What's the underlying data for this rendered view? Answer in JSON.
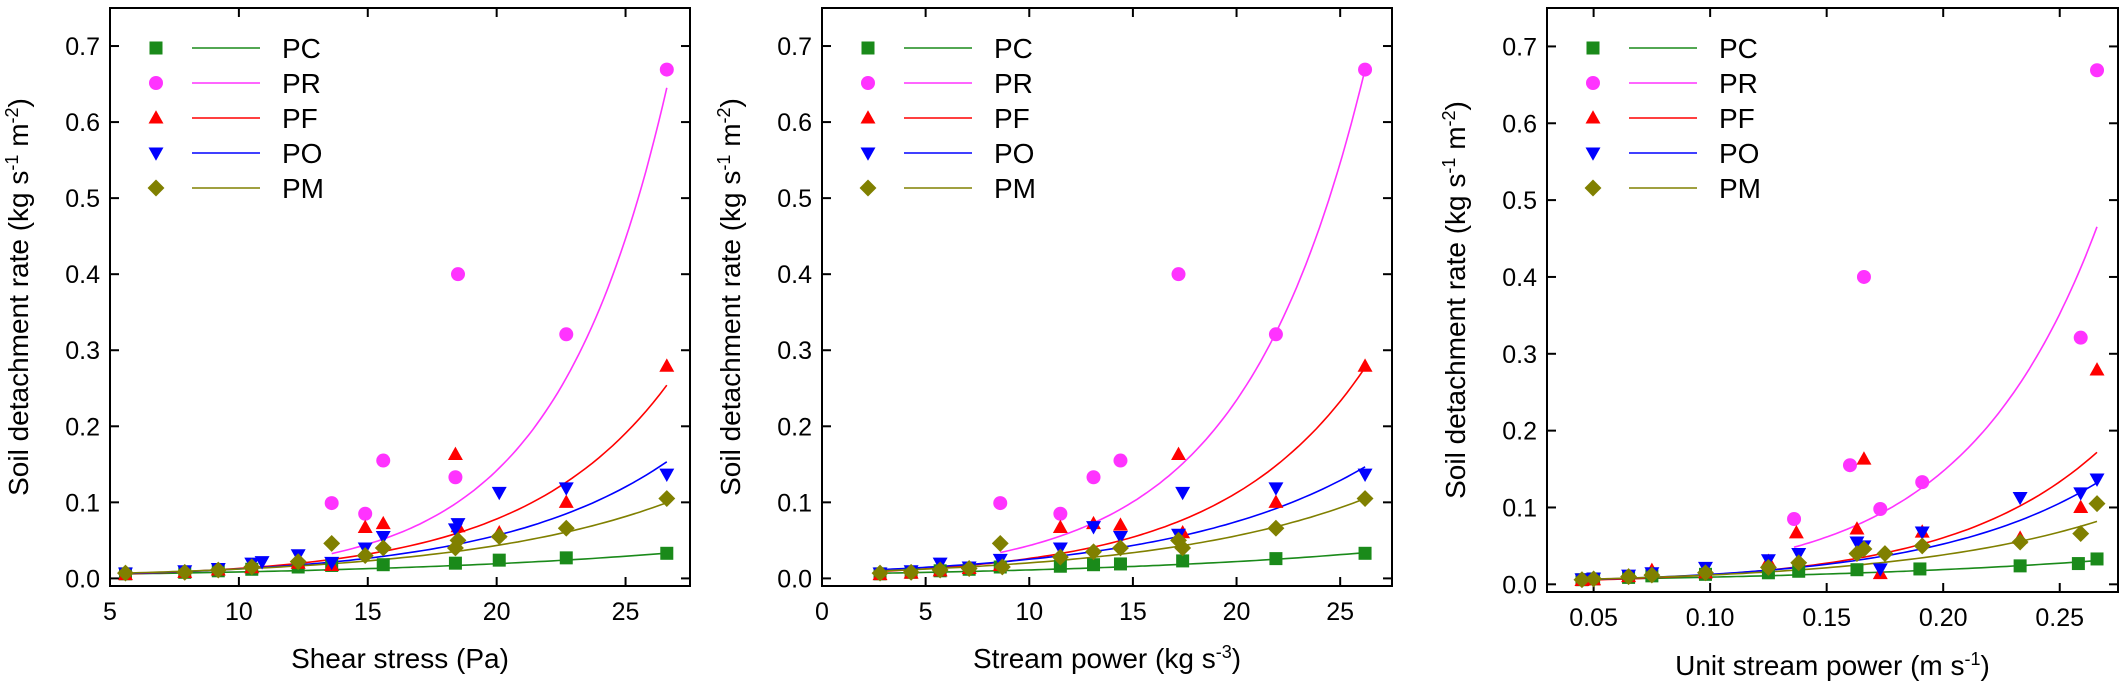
{
  "chart_data": [
    {
      "type": "scatter",
      "title": "",
      "xlabel": "Shear stress (Pa)",
      "ylabel": "Soil detachment rate (kg s-1 m-2)",
      "xlim": [
        5,
        27.5
      ],
      "ylim": [
        -0.01,
        0.75
      ],
      "xticks": [
        5,
        10,
        15,
        20,
        25
      ],
      "yticks": [
        0.0,
        0.1,
        0.2,
        0.3,
        0.4,
        0.5,
        0.6,
        0.7
      ],
      "grid": false,
      "legend_position": "top-left",
      "series": [
        {
          "name": "PC",
          "color": "#1a8a1a",
          "marker": "square",
          "points": [
            [
              5.6,
              0.006
            ],
            [
              7.9,
              0.008
            ],
            [
              9.2,
              0.01
            ],
            [
              10.5,
              0.012
            ],
            [
              12.3,
              0.015
            ],
            [
              13.6,
              0.017
            ],
            [
              15.6,
              0.018
            ],
            [
              18.4,
              0.02
            ],
            [
              20.1,
              0.024
            ],
            [
              22.7,
              0.027
            ],
            [
              26.6,
              0.033
            ]
          ],
          "fit": {
            "a": 0.00372,
            "b": 0.0823
          }
        },
        {
          "name": "PR",
          "color": "#ff33ff",
          "marker": "circle",
          "points": [
            [
              13.6,
              0.099
            ],
            [
              14.9,
              0.085
            ],
            [
              15.6,
              0.155
            ],
            [
              18.4,
              0.133
            ],
            [
              18.5,
              0.4
            ],
            [
              22.7,
              0.321
            ],
            [
              26.6,
              0.669
            ]
          ],
          "fit": {
            "a": 0.00144,
            "b": 0.2295
          }
        },
        {
          "name": "PF",
          "color": "#ff0000",
          "marker": "triangle-up",
          "points": [
            [
              5.6,
              0.005
            ],
            [
              7.9,
              0.008
            ],
            [
              9.2,
              0.011
            ],
            [
              10.5,
              0.014
            ],
            [
              12.3,
              0.02
            ],
            [
              13.6,
              0.017
            ],
            [
              14.9,
              0.067
            ],
            [
              15.6,
              0.072
            ],
            [
              18.4,
              0.163
            ],
            [
              18.5,
              0.068
            ],
            [
              20.1,
              0.06
            ],
            [
              22.7,
              0.1
            ],
            [
              26.6,
              0.279
            ]
          ],
          "fit": {
            "a": 0.00219,
            "b": 0.1787
          }
        },
        {
          "name": "PO",
          "color": "#0000ff",
          "marker": "triangle-down",
          "points": [
            [
              5.6,
              0.007
            ],
            [
              7.9,
              0.01
            ],
            [
              9.2,
              0.013
            ],
            [
              10.5,
              0.02
            ],
            [
              10.9,
              0.022
            ],
            [
              12.3,
              0.031
            ],
            [
              13.6,
              0.021
            ],
            [
              14.9,
              0.04
            ],
            [
              15.6,
              0.055
            ],
            [
              18.4,
              0.065
            ],
            [
              18.5,
              0.072
            ],
            [
              20.1,
              0.113
            ],
            [
              22.7,
              0.119
            ],
            [
              26.6,
              0.137
            ]
          ],
          "fit": {
            "a": 0.00274,
            "b": 0.1513
          }
        },
        {
          "name": "PM",
          "color": "#808000",
          "marker": "diamond",
          "points": [
            [
              5.6,
              0.007
            ],
            [
              7.9,
              0.008
            ],
            [
              9.2,
              0.011
            ],
            [
              10.5,
              0.015
            ],
            [
              12.3,
              0.022
            ],
            [
              13.6,
              0.046
            ],
            [
              14.9,
              0.03
            ],
            [
              15.6,
              0.04
            ],
            [
              18.4,
              0.04
            ],
            [
              18.5,
              0.05
            ],
            [
              20.1,
              0.055
            ],
            [
              22.7,
              0.066
            ],
            [
              26.6,
              0.105
            ]
          ],
          "fit": {
            "a": 0.00347,
            "b": 0.1262
          }
        }
      ]
    },
    {
      "type": "scatter",
      "title": "",
      "xlabel": "Stream power (kg s-3)",
      "ylabel": "Soil detachment rate (kg s-1 m-2)",
      "xlim": [
        0,
        27.5
      ],
      "ylim": [
        -0.01,
        0.75
      ],
      "xticks": [
        0,
        5,
        10,
        15,
        20,
        25
      ],
      "yticks": [
        0.0,
        0.1,
        0.2,
        0.3,
        0.4,
        0.5,
        0.6,
        0.7
      ],
      "grid": false,
      "legend_position": "top-left",
      "series": [
        {
          "name": "PC",
          "color": "#1a8a1a",
          "marker": "square",
          "points": [
            [
              2.8,
              0.006
            ],
            [
              4.3,
              0.008
            ],
            [
              5.7,
              0.01
            ],
            [
              7.1,
              0.012
            ],
            [
              8.6,
              0.015
            ],
            [
              11.5,
              0.016
            ],
            [
              13.1,
              0.018
            ],
            [
              14.4,
              0.019
            ],
            [
              17.4,
              0.023
            ],
            [
              21.9,
              0.026
            ],
            [
              26.2,
              0.033
            ]
          ],
          "fit": {
            "a": 0.00561,
            "b": 0.0686
          }
        },
        {
          "name": "PR",
          "color": "#ff33ff",
          "marker": "circle",
          "points": [
            [
              8.6,
              0.099
            ],
            [
              11.5,
              0.085
            ],
            [
              13.1,
              0.133
            ],
            [
              14.4,
              0.155
            ],
            [
              17.2,
              0.4
            ],
            [
              21.9,
              0.321
            ],
            [
              26.2,
              0.669
            ]
          ],
          "fit": {
            "a": 0.00795,
            "b": 0.1692
          }
        },
        {
          "name": "PF",
          "color": "#ff0000",
          "marker": "triangle-up",
          "points": [
            [
              2.8,
              0.005
            ],
            [
              4.3,
              0.007
            ],
            [
              5.7,
              0.01
            ],
            [
              7.1,
              0.013
            ],
            [
              8.6,
              0.017
            ],
            [
              11.5,
              0.067
            ],
            [
              13.1,
              0.072
            ],
            [
              14.4,
              0.07
            ],
            [
              17.2,
              0.163
            ],
            [
              17.4,
              0.06
            ],
            [
              21.9,
              0.1
            ],
            [
              26.2,
              0.279
            ]
          ],
          "fit": {
            "a": 0.00611,
            "b": 0.1456
          }
        },
        {
          "name": "PO",
          "color": "#0000ff",
          "marker": "triangle-down",
          "points": [
            [
              2.8,
              0.007
            ],
            [
              4.3,
              0.01
            ],
            [
              5.7,
              0.02
            ],
            [
              7.1,
              0.015
            ],
            [
              8.6,
              0.025
            ],
            [
              11.5,
              0.04
            ],
            [
              13.1,
              0.068
            ],
            [
              14.4,
              0.055
            ],
            [
              17.2,
              0.058
            ],
            [
              17.4,
              0.113
            ],
            [
              21.9,
              0.119
            ],
            [
              26.2,
              0.137
            ]
          ],
          "fit": {
            "a": 0.00846,
            "b": 0.1089
          }
        },
        {
          "name": "PM",
          "color": "#808000",
          "marker": "diamond",
          "points": [
            [
              2.8,
              0.007
            ],
            [
              4.3,
              0.008
            ],
            [
              5.7,
              0.011
            ],
            [
              7.1,
              0.013
            ],
            [
              8.6,
              0.046
            ],
            [
              8.7,
              0.015
            ],
            [
              11.5,
              0.028
            ],
            [
              13.1,
              0.035
            ],
            [
              14.4,
              0.04
            ],
            [
              17.2,
              0.05
            ],
            [
              17.4,
              0.04
            ],
            [
              21.9,
              0.066
            ],
            [
              26.2,
              0.105
            ]
          ],
          "fit": {
            "a": 0.00742,
            "b": 0.1011
          }
        }
      ]
    },
    {
      "type": "scatter",
      "title": "",
      "xlabel": "Unit stream power (m s-1)",
      "ylabel": "Soil detachment rate (kg s-1 m-2)",
      "xlim": [
        0.03,
        0.275
      ],
      "ylim": [
        -0.01,
        0.75
      ],
      "xticks": [
        0.05,
        0.1,
        0.15,
        0.2,
        0.25
      ],
      "yticks": [
        0.0,
        0.1,
        0.2,
        0.3,
        0.4,
        0.5,
        0.6,
        0.7
      ],
      "grid": false,
      "legend_position": "top-left",
      "series": [
        {
          "name": "PC",
          "color": "#1a8a1a",
          "marker": "square",
          "points": [
            [
              0.045,
              0.006
            ],
            [
              0.05,
              0.007
            ],
            [
              0.065,
              0.009
            ],
            [
              0.075,
              0.011
            ],
            [
              0.098,
              0.013
            ],
            [
              0.125,
              0.015
            ],
            [
              0.138,
              0.017
            ],
            [
              0.163,
              0.019
            ],
            [
              0.19,
              0.02
            ],
            [
              0.233,
              0.024
            ],
            [
              0.258,
              0.027
            ],
            [
              0.266,
              0.033
            ]
          ],
          "fit": {
            "a": 0.00454,
            "b": 7.2
          }
        },
        {
          "name": "PR",
          "color": "#ff33ff",
          "marker": "circle",
          "points": [
            [
              0.136,
              0.085
            ],
            [
              0.16,
              0.155
            ],
            [
              0.166,
              0.4
            ],
            [
              0.173,
              0.098
            ],
            [
              0.191,
              0.133
            ],
            [
              0.259,
              0.321
            ],
            [
              0.266,
              0.669
            ]
          ],
          "fit": {
            "a": 0.00451,
            "b": 17.43
          }
        },
        {
          "name": "PF",
          "color": "#ff0000",
          "marker": "triangle-up",
          "points": [
            [
              0.045,
              0.005
            ],
            [
              0.05,
              0.006
            ],
            [
              0.065,
              0.01
            ],
            [
              0.075,
              0.018
            ],
            [
              0.098,
              0.015
            ],
            [
              0.125,
              0.03
            ],
            [
              0.137,
              0.067
            ],
            [
              0.163,
              0.072
            ],
            [
              0.166,
              0.163
            ],
            [
              0.173,
              0.014
            ],
            [
              0.191,
              0.068
            ],
            [
              0.233,
              0.06
            ],
            [
              0.259,
              0.1
            ],
            [
              0.266,
              0.279
            ]
          ],
          "fit": {
            "a": 0.00257,
            "b": 15.8
          }
        },
        {
          "name": "PO",
          "color": "#0000ff",
          "marker": "triangle-down",
          "points": [
            [
              0.045,
              0.007
            ],
            [
              0.05,
              0.008
            ],
            [
              0.065,
              0.012
            ],
            [
              0.075,
              0.015
            ],
            [
              0.098,
              0.022
            ],
            [
              0.125,
              0.032
            ],
            [
              0.138,
              0.04
            ],
            [
              0.163,
              0.055
            ],
            [
              0.166,
              0.05
            ],
            [
              0.173,
              0.02
            ],
            [
              0.191,
              0.068
            ],
            [
              0.233,
              0.113
            ],
            [
              0.259,
              0.119
            ],
            [
              0.266,
              0.137
            ]
          ],
          "fit": {
            "a": 0.00319,
            "b": 14.0
          }
        },
        {
          "name": "PM",
          "color": "#808000",
          "marker": "diamond",
          "points": [
            [
              0.045,
              0.006
            ],
            [
              0.05,
              0.007
            ],
            [
              0.065,
              0.01
            ],
            [
              0.075,
              0.012
            ],
            [
              0.098,
              0.015
            ],
            [
              0.125,
              0.022
            ],
            [
              0.138,
              0.028
            ],
            [
              0.163,
              0.04
            ],
            [
              0.166,
              0.046
            ],
            [
              0.175,
              0.04
            ],
            [
              0.191,
              0.05
            ],
            [
              0.233,
              0.055
            ],
            [
              0.259,
              0.066
            ],
            [
              0.266,
              0.105
            ]
          ],
          "fit": {
            "a": 0.00384,
            "b": 11.5
          }
        }
      ]
    }
  ]
}
